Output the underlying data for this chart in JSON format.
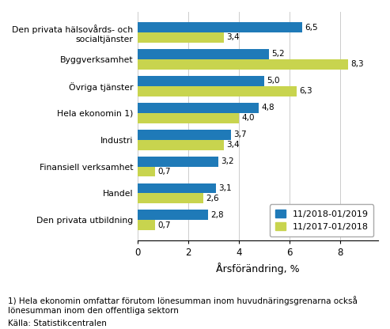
{
  "categories": [
    "Den privata hälsovårds- och\nsocialtjänster",
    "Byggverksamhet",
    "Övriga tjänster",
    "Hela ekonomin 1)",
    "Industri",
    "Finansiell verksamhet",
    "Handel",
    "Den privata utbildning"
  ],
  "series1_label": "11/2018-01/2019",
  "series2_label": "11/2017-01/2018",
  "series1_values": [
    6.5,
    5.2,
    5.0,
    4.8,
    3.7,
    3.2,
    3.1,
    2.8
  ],
  "series2_values": [
    3.4,
    8.3,
    6.3,
    4.0,
    3.4,
    0.7,
    2.6,
    0.7
  ],
  "series1_color": "#1f7ab8",
  "series2_color": "#c8d44e",
  "xlabel": "Årsförändring, %",
  "xlim": [
    0,
    9.5
  ],
  "xticks": [
    0,
    2,
    4,
    6,
    8
  ],
  "footnote1": "1) Hela ekonomin omfattar förutom lönesumman inom huvudnäringsgrenarna också",
  "footnote2": "lönesumman inom den offentliga sektorn",
  "footnote3": "Källa: Statistikcentralen",
  "bar_height": 0.38,
  "label_fontsize": 7.8,
  "tick_fontsize": 8.5,
  "xlabel_fontsize": 9,
  "legend_fontsize": 8,
  "footnote_fontsize": 7.5,
  "value_fontsize": 7.5
}
